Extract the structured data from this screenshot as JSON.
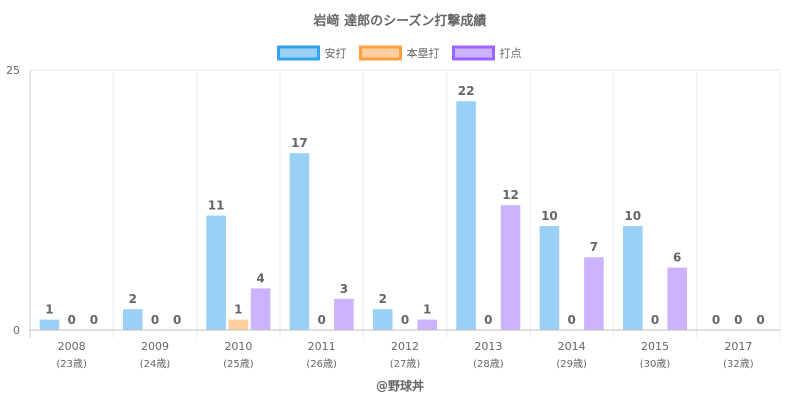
{
  "chart_data": {
    "type": "bar",
    "title": "岩﨑 達郎のシーズン打撃成績",
    "categories": [
      "2008",
      "2009",
      "2010",
      "2011",
      "2012",
      "2013",
      "2014",
      "2015",
      "2017"
    ],
    "category_sublabels": [
      "(23歳)",
      "(24歳)",
      "(25歳)",
      "(26歳)",
      "(27歳)",
      "(28歳)",
      "(29歳)",
      "(30歳)",
      "(32歳)"
    ],
    "series": [
      {
        "name": "安打",
        "values": [
          1,
          2,
          11,
          17,
          2,
          22,
          10,
          10,
          0
        ],
        "color": "#9ad0f5",
        "border_color": "#36a2eb"
      },
      {
        "name": "本塁打",
        "values": [
          0,
          0,
          1,
          0,
          0,
          0,
          0,
          0,
          0
        ],
        "color": "#ffcf9f",
        "border_color": "#ff9f40"
      },
      {
        "name": "打点",
        "values": [
          0,
          0,
          4,
          3,
          1,
          12,
          7,
          6,
          0
        ],
        "color": "#ccb2ff",
        "border_color": "#9966ff"
      }
    ],
    "y_ticks": [
      "0",
      "25"
    ],
    "ylim": [
      0,
      25
    ],
    "legend_position": "top",
    "grid": true,
    "data_labels": true,
    "footer": "@野球丼"
  }
}
